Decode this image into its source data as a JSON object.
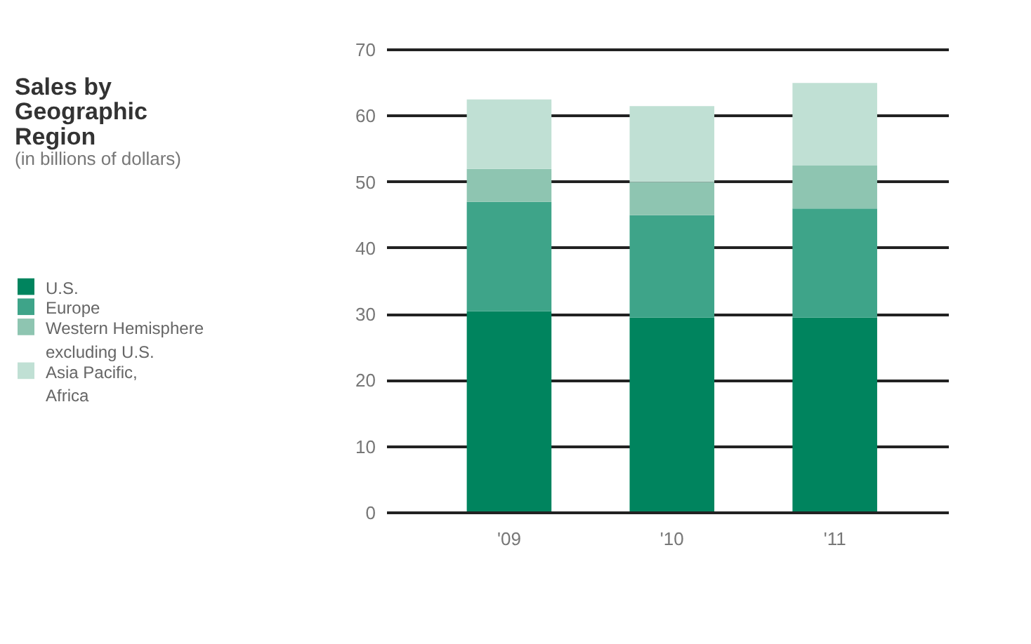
{
  "chart_data": {
    "type": "bar",
    "stacked": true,
    "title": "Sales by Geographic Region",
    "subtitle": "(in billions of dollars)",
    "categories": [
      "'09",
      "'10",
      "'11"
    ],
    "series": [
      {
        "name": "U.S.",
        "color": "#00845e",
        "values": [
          30.5,
          29.5,
          29.5
        ]
      },
      {
        "name": "Europe",
        "color": "#3ea489",
        "values": [
          16.5,
          15.5,
          16.5
        ]
      },
      {
        "name": "Western Hemisphere excluding U.S.",
        "color": "#8ec5b1",
        "values": [
          5,
          5,
          6.5
        ]
      },
      {
        "name": "Asia Pacific, Africa",
        "color": "#c0e0d4",
        "values": [
          10.5,
          11.5,
          12.5
        ]
      }
    ],
    "ylim": [
      0,
      70
    ],
    "yticks": [
      0,
      10,
      20,
      30,
      40,
      50,
      60,
      70
    ],
    "grid": "y",
    "legend": "left"
  }
}
